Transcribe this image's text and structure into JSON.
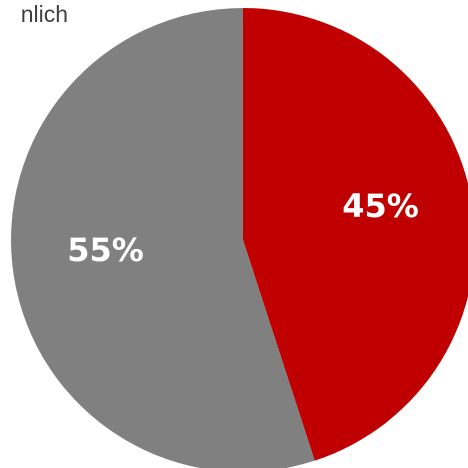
{
  "chart_data": {
    "type": "pie",
    "annotation": "nlich",
    "values": [
      45,
      55
    ],
    "value_labels": [
      "45%",
      "55%"
    ],
    "colors": [
      "#c00000",
      "#808080"
    ]
  }
}
